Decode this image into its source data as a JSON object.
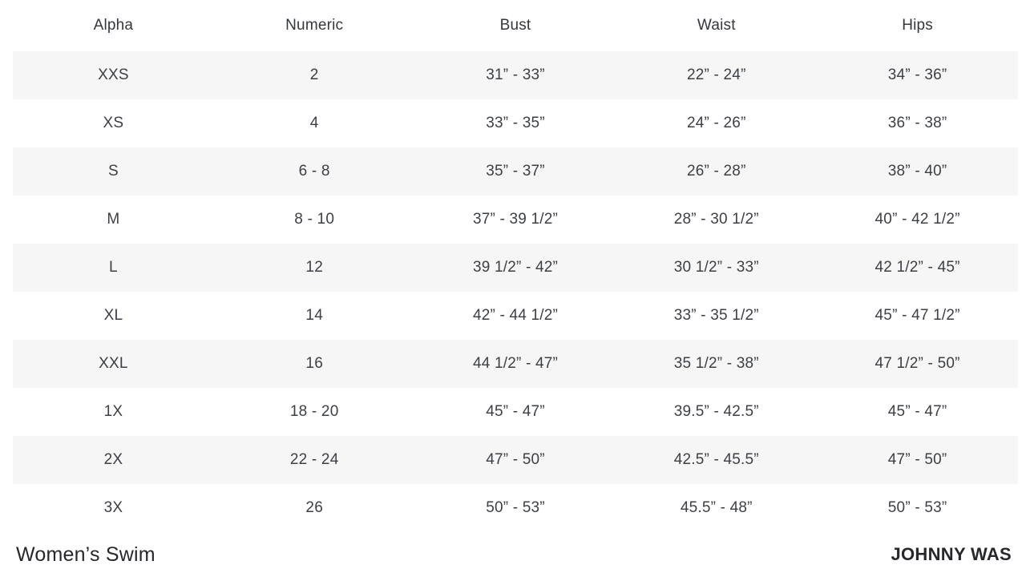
{
  "chart_data": {
    "type": "table",
    "title": "Women’s Swim",
    "brand": "JOHNNY WAS",
    "columns": [
      "Alpha",
      "Numeric",
      "Bust",
      "Waist",
      "Hips"
    ],
    "rows": [
      [
        "XXS",
        "2",
        "31” - 33”",
        "22” - 24”",
        "34” - 36”"
      ],
      [
        "XS",
        "4",
        "33” - 35”",
        "24” - 26”",
        "36” - 38”"
      ],
      [
        "S",
        "6 - 8",
        "35” - 37”",
        "26” - 28”",
        "38” - 40”"
      ],
      [
        "M",
        "8 - 10",
        "37” - 39 1/2”",
        "28” - 30 1/2”",
        "40” - 42 1/2”"
      ],
      [
        "L",
        "12",
        "39 1/2” - 42”",
        "30 1/2” - 33”",
        "42 1/2” - 45”"
      ],
      [
        "XL",
        "14",
        "42” - 44 1/2”",
        "33” - 35 1/2”",
        "45” - 47 1/2”"
      ],
      [
        "XXL",
        "16",
        "44 1/2” - 47”",
        "35 1/2” - 38”",
        "47 1/2” - 50”"
      ],
      [
        "1X",
        "18 - 20",
        "45” - 47”",
        "39.5” - 42.5”",
        "45” - 47”"
      ],
      [
        "2X",
        "22 - 24",
        "47” - 50”",
        "42.5” - 45.5”",
        "47” - 50”"
      ],
      [
        "3X",
        "26",
        "50” - 53”",
        "45.5” - 48”",
        "50” - 53”"
      ]
    ],
    "layout": {
      "stripe_color": "#f6f6f6",
      "background": "#ffffff",
      "text_color": "#3c3f44",
      "striped_rows": "odd"
    }
  }
}
